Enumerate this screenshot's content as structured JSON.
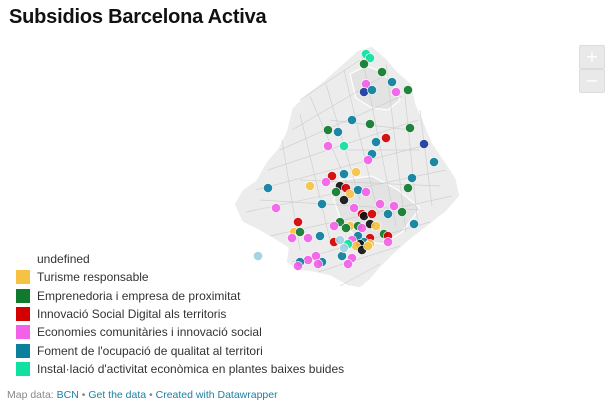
{
  "title": "Subsidios Barcelona Activa",
  "zoom": {
    "in_label": "+",
    "out_label": "−"
  },
  "legend": {
    "header": "undefined",
    "items": [
      {
        "label": "Turisme responsable",
        "color": "#f6c244"
      },
      {
        "label": "Emprenedoria i empresa de proximitat",
        "color": "#0f7a2c"
      },
      {
        "label": "Innovació Social Digital als territoris",
        "color": "#d40000"
      },
      {
        "label": "Economies comunitàries i innovació social",
        "color": "#f261e8"
      },
      {
        "label": "Foment de l'ocupació de qualitat al territori",
        "color": "#0b7f9c"
      },
      {
        "label": "Instal·lació d'activitat econòmica en plantes baixes buides",
        "color": "#10e0a0"
      }
    ]
  },
  "footer": {
    "prefix": "Map data: ",
    "source": "BCN",
    "sep1": " • ",
    "get_data": "Get the data",
    "sep2": " • ",
    "created": "Created with Datawrapper"
  },
  "map": {
    "land_color": "#ececec",
    "border_color": "#ffffff",
    "street_color": "#c9c9c9",
    "other_colors": {
      "black": "#111111",
      "navy": "#1c3a9c",
      "light": "#9fd0e0"
    }
  }
}
